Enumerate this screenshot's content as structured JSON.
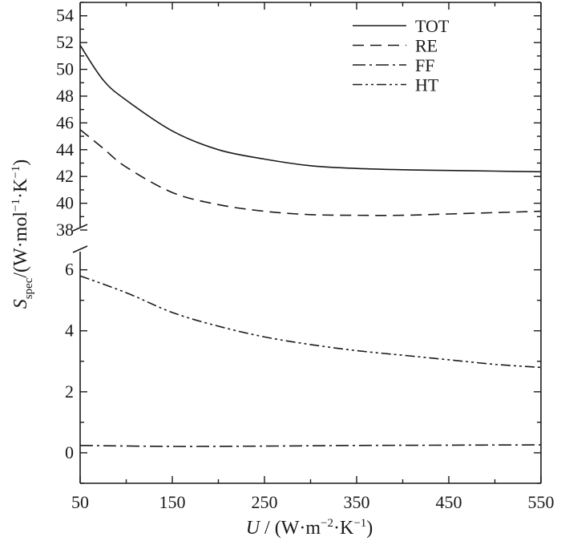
{
  "chart_data": {
    "type": "line",
    "xlabel": {
      "italic": "U",
      "text": " / (W·m",
      "sup1": "−2",
      "text2": "·K",
      "sup2": "−1",
      "text3": ")"
    },
    "ylabel": {
      "italic": "S",
      "sub": "spec",
      "text": "/(W·mol",
      "sup1": "−1",
      "text2": "·K",
      "sup2": "−1",
      "text3": ")"
    },
    "xlim": [
      50,
      550
    ],
    "x_ticks": [
      "50",
      "150",
      "250",
      "350",
      "450",
      "550"
    ],
    "x_ticks_values": [
      50,
      150,
      250,
      350,
      450,
      550
    ],
    "y_break": true,
    "upper_ylim": [
      38,
      55
    ],
    "upper_ticks": [
      "38",
      "40",
      "42",
      "44",
      "46",
      "48",
      "50",
      "52",
      "54"
    ],
    "upper_ticks_values": [
      38,
      40,
      42,
      44,
      46,
      48,
      50,
      52,
      54
    ],
    "lower_ylim": [
      -1,
      6.7
    ],
    "lower_ticks": [
      "0",
      "2",
      "4",
      "6"
    ],
    "lower_ticks_values": [
      0,
      2,
      4,
      6
    ],
    "legend_position": "top-right",
    "series": [
      {
        "name": "TOT",
        "dash": "solid",
        "axis": "upper",
        "x": [
          50,
          75,
          100,
          150,
          200,
          250,
          300,
          350,
          400,
          450,
          500,
          550
        ],
        "y": [
          51.8,
          49.2,
          47.7,
          45.4,
          44.0,
          43.3,
          42.8,
          42.6,
          42.5,
          42.45,
          42.4,
          42.35
        ]
      },
      {
        "name": "RE",
        "dash": "dashed",
        "axis": "upper",
        "x": [
          50,
          75,
          100,
          150,
          200,
          250,
          300,
          350,
          400,
          450,
          500,
          550
        ],
        "y": [
          45.5,
          44.1,
          42.7,
          40.8,
          39.9,
          39.4,
          39.15,
          39.1,
          39.1,
          39.2,
          39.3,
          39.4
        ]
      },
      {
        "name": "FF",
        "dash": "dashdot",
        "axis": "lower",
        "x": [
          50,
          150,
          250,
          350,
          450,
          550
        ],
        "y": [
          0.24,
          0.21,
          0.22,
          0.24,
          0.25,
          0.26
        ]
      },
      {
        "name": "HT",
        "dash": "dashdotdot",
        "axis": "lower",
        "x": [
          50,
          100,
          150,
          200,
          250,
          300,
          350,
          400,
          450,
          500,
          550
        ],
        "y": [
          5.8,
          5.25,
          4.6,
          4.15,
          3.8,
          3.55,
          3.35,
          3.2,
          3.05,
          2.9,
          2.8
        ]
      }
    ]
  }
}
